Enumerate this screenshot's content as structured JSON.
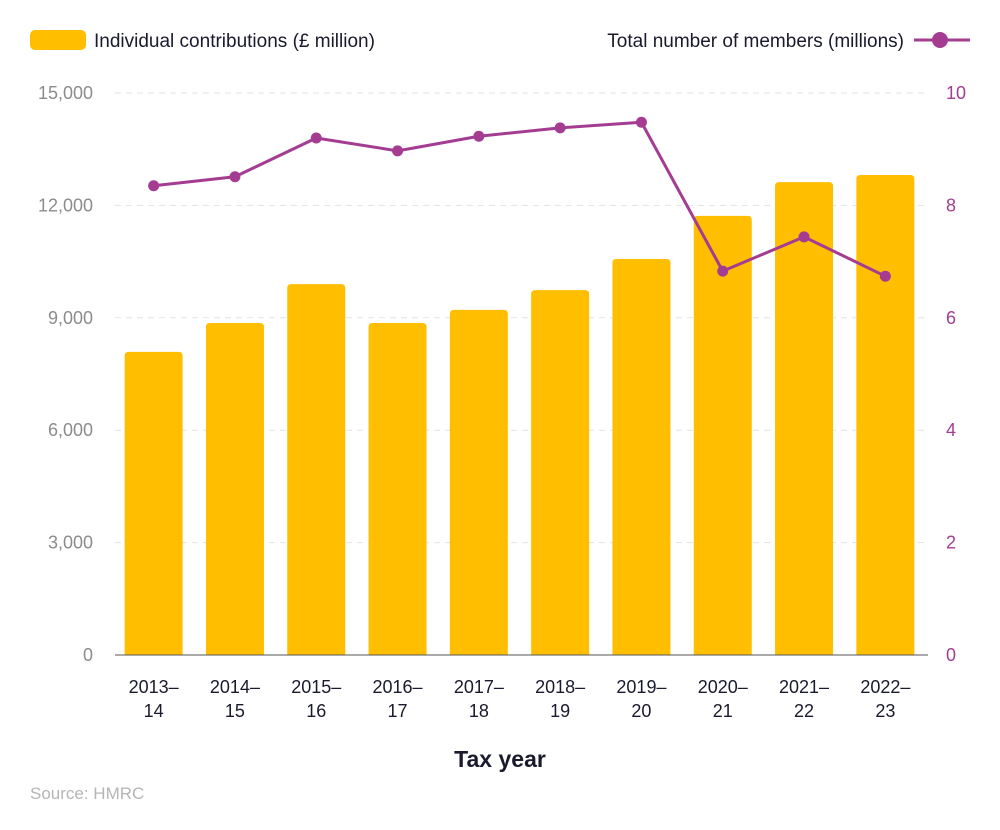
{
  "chart_data": {
    "type": "bar+line",
    "categories": [
      "2013–14",
      "2014–15",
      "2015–16",
      "2016–17",
      "2017–18",
      "2018–19",
      "2019–20",
      "2020–21",
      "2021–22",
      "2022–23"
    ],
    "series": [
      {
        "name": "Individual contributions (£ million)",
        "type": "bar",
        "axis": "left",
        "color": "#FFBE00",
        "values": [
          8090,
          8860,
          9900,
          8860,
          9210,
          9740,
          10570,
          11720,
          12620,
          12810
        ]
      },
      {
        "name": "Total number of members (millions)",
        "type": "line",
        "axis": "right",
        "color": "#A43C92",
        "values": [
          8.35,
          8.51,
          9.2,
          8.97,
          9.23,
          9.38,
          9.48,
          6.83,
          7.44,
          6.74
        ]
      }
    ],
    "xlabel": "Tax year",
    "y_left": {
      "range": [
        0,
        15000
      ],
      "ticks": [
        "0",
        "3,000",
        "6,000",
        "9,000",
        "12,000",
        "15,000"
      ],
      "tick_values": [
        0,
        3000,
        6000,
        9000,
        12000,
        15000
      ]
    },
    "y_right": {
      "range": [
        0,
        10
      ],
      "ticks": [
        "0",
        "2",
        "4",
        "6",
        "8",
        "10"
      ],
      "tick_values": [
        0,
        2,
        4,
        6,
        8,
        10
      ]
    },
    "grid": true,
    "legend": "top"
  },
  "source": "Source: HMRC"
}
